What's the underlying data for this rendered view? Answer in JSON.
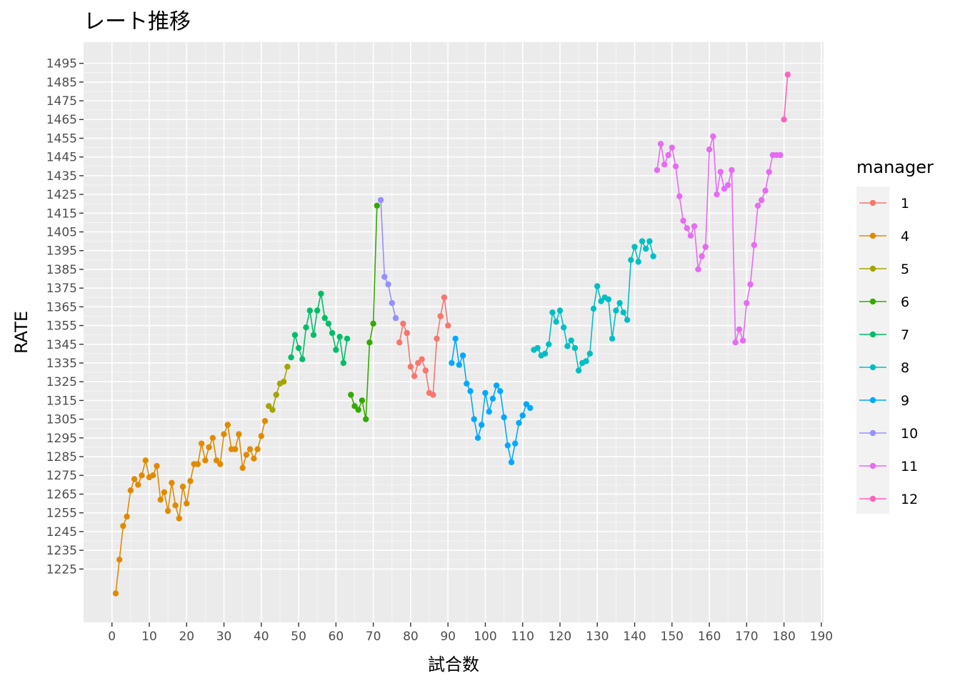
{
  "chart_data": {
    "type": "line",
    "title": "レート推移",
    "xlabel": "試合数",
    "ylabel": "RATE",
    "xlim": [
      -7.6,
      190.6
    ],
    "ylim": [
      1196.5,
      1506.3
    ],
    "x_ticks": [
      0,
      10,
      20,
      30,
      40,
      50,
      60,
      70,
      80,
      90,
      100,
      110,
      120,
      130,
      140,
      150,
      160,
      170,
      180,
      190
    ],
    "y_ticks": [
      1225,
      1235,
      1245,
      1255,
      1265,
      1275,
      1285,
      1295,
      1305,
      1315,
      1325,
      1335,
      1345,
      1355,
      1365,
      1375,
      1385,
      1395,
      1405,
      1415,
      1425,
      1435,
      1445,
      1455,
      1465,
      1475,
      1485,
      1495
    ],
    "grid": true,
    "legend": {
      "title": "manager",
      "position": "right"
    },
    "series": [
      {
        "name": "4",
        "color": "#E18A00",
        "x": [
          1,
          2,
          3,
          4,
          5,
          6,
          7,
          8,
          9,
          10,
          11,
          12,
          13,
          14,
          15,
          16,
          17,
          18,
          19,
          20,
          21,
          22,
          23,
          24,
          25,
          26,
          27,
          28,
          29,
          30,
          31,
          32,
          33,
          34,
          35,
          36,
          37,
          38,
          39,
          40,
          41
        ],
        "y": [
          1212,
          1230,
          1248,
          1253,
          1267,
          1273,
          1270,
          1275,
          1283,
          1274,
          1275,
          1280,
          1262,
          1266,
          1256,
          1271,
          1259,
          1252,
          1269,
          1260,
          1272,
          1281,
          1281,
          1292,
          1283,
          1290,
          1295,
          1283,
          1281,
          1297,
          1302,
          1289,
          1289,
          1297,
          1279,
          1286,
          1289,
          1284,
          1289,
          1296,
          1304
        ]
      },
      {
        "name": "5",
        "color": "#A3A500",
        "x": [
          42,
          43,
          44,
          45,
          46,
          47
        ],
        "y": [
          1312,
          1310,
          1318,
          1324,
          1325,
          1333
        ]
      },
      {
        "name": "7",
        "color": "#00BE67",
        "x": [
          48,
          49,
          50,
          51,
          52,
          53,
          54,
          55,
          56,
          57,
          58,
          59,
          60,
          61,
          62,
          63
        ],
        "y": [
          1338,
          1350,
          1343,
          1337,
          1354,
          1363,
          1350,
          1363,
          1372,
          1359,
          1356,
          1351,
          1342,
          1349,
          1335,
          1348
        ]
      },
      {
        "name": "6",
        "color": "#35A900",
        "x": [
          64,
          65,
          66,
          67,
          68,
          69,
          70,
          71
        ],
        "y": [
          1318,
          1312,
          1310,
          1315,
          1305,
          1346,
          1356,
          1419
        ]
      },
      {
        "name": "10",
        "color": "#9590FF",
        "x": [
          72,
          73,
          74,
          75,
          76
        ],
        "y": [
          1422,
          1381,
          1377,
          1367,
          1359
        ]
      },
      {
        "name": "1",
        "color": "#F8766D",
        "x": [
          77,
          78,
          79,
          80,
          81,
          82,
          83,
          84,
          85,
          86,
          87,
          88,
          89,
          90
        ],
        "y": [
          1346,
          1356,
          1351,
          1333,
          1328,
          1335,
          1337,
          1331,
          1319,
          1318,
          1348,
          1360,
          1370,
          1355
        ]
      },
      {
        "name": "9",
        "color": "#00A9FF",
        "x": [
          91,
          92,
          93,
          94,
          95,
          96,
          97,
          98,
          99,
          100,
          101,
          102,
          103,
          104,
          105,
          106,
          107,
          108,
          109,
          110,
          111,
          112
        ],
        "y": [
          1335,
          1348,
          1334,
          1339,
          1324,
          1320,
          1305,
          1295,
          1302,
          1319,
          1309,
          1316,
          1323,
          1320,
          1306,
          1291,
          1282,
          1292,
          1303,
          1307,
          1313,
          1311
        ]
      },
      {
        "name": "8",
        "color": "#00BFC4",
        "x": [
          113,
          114,
          115,
          116,
          117,
          118,
          119,
          120,
          121,
          122,
          123,
          124,
          125,
          126,
          127,
          128,
          129,
          130,
          131,
          132,
          133,
          134,
          135,
          136,
          137,
          138,
          139,
          140,
          141,
          142,
          143,
          144,
          145
        ],
        "y": [
          1342,
          1343,
          1339,
          1340,
          1345,
          1362,
          1357,
          1363,
          1354,
          1344,
          1347,
          1343,
          1331,
          1335,
          1336,
          1340,
          1364,
          1376,
          1368,
          1370,
          1369,
          1348,
          1363,
          1367,
          1362,
          1358,
          1390,
          1397,
          1389,
          1400,
          1396,
          1400,
          1392
        ]
      },
      {
        "name": "11",
        "color": "#E76BF3",
        "x": [
          146,
          147,
          148,
          149,
          150,
          151,
          152,
          153,
          154,
          155,
          156,
          157,
          158,
          159,
          160,
          161,
          162,
          163,
          164,
          165,
          166,
          167,
          168,
          169,
          170,
          171,
          172,
          173,
          174,
          175,
          176,
          177,
          178,
          179
        ],
        "y": [
          1438,
          1452,
          1441,
          1446,
          1450,
          1440,
          1424,
          1411,
          1407,
          1403,
          1408,
          1385,
          1392,
          1397,
          1449,
          1456,
          1425,
          1437,
          1428,
          1430,
          1438,
          1346,
          1353,
          1347,
          1367,
          1377,
          1398,
          1419,
          1422,
          1427,
          1437,
          1446,
          1446,
          1446
        ]
      },
      {
        "name": "12",
        "color": "#FF62BC",
        "x": [
          180,
          181
        ],
        "y": [
          1465,
          1489
        ]
      }
    ],
    "legend_order": [
      "1",
      "4",
      "5",
      "6",
      "7",
      "8",
      "9",
      "10",
      "11",
      "12"
    ]
  }
}
